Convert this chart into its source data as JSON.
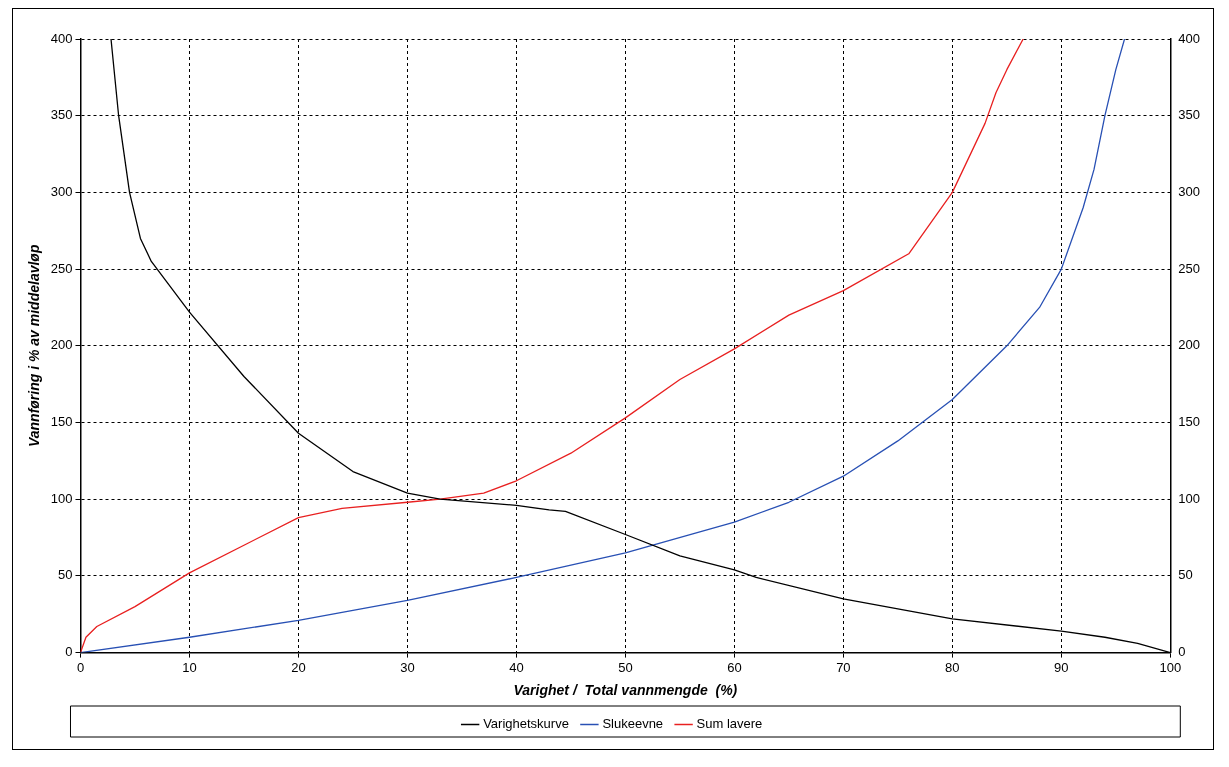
{
  "chart_data": {
    "type": "line",
    "xlabel": "Varighet /  Total vannmengde  (%)",
    "ylabel": "Vannføring i % av middelavløp",
    "xlim": [
      0,
      100
    ],
    "xticks": [
      0,
      10,
      20,
      30,
      40,
      50,
      60,
      70,
      80,
      90,
      100
    ],
    "ylim": [
      0,
      400
    ],
    "yticks": [
      0,
      50,
      100,
      150,
      200,
      250,
      300,
      350,
      400
    ],
    "y2lim": [
      0,
      400
    ],
    "y2ticks": [
      0,
      50,
      100,
      150,
      200,
      250,
      300,
      350,
      400
    ],
    "grid": true,
    "legend": "bottom",
    "marker": "none",
    "line_style": "solid",
    "series": [
      {
        "name": "Varighetskurve",
        "color": "#000000",
        "x": [
          2.8,
          3.5,
          4.5,
          5.5,
          6.5,
          10,
          15,
          20,
          25,
          30,
          33,
          40,
          43,
          44.5,
          50,
          55,
          60,
          62,
          70,
          80,
          90,
          94,
          97,
          100
        ],
        "values": [
          400,
          350,
          300,
          270,
          255,
          222,
          180,
          143,
          118,
          104,
          100,
          96,
          93,
          92,
          77,
          63,
          54,
          49,
          35,
          22,
          14,
          10,
          6,
          0
        ]
      },
      {
        "name": "Slukeevne",
        "color": "#2850b4",
        "x": [
          0,
          10,
          20,
          30,
          40,
          50,
          60,
          65,
          70,
          75,
          80,
          85,
          88,
          90,
          92,
          93,
          94,
          95,
          95.8
        ],
        "values": [
          0,
          10,
          21,
          34,
          49,
          65,
          85,
          98,
          115,
          138,
          165,
          200,
          225,
          250,
          290,
          315,
          350,
          380,
          400
        ]
      },
      {
        "name": "Sum lavere",
        "color": "#e82020",
        "x": [
          0,
          0.5,
          1.5,
          5,
          10,
          15,
          20,
          24,
          30,
          33,
          37,
          40,
          45,
          50,
          55,
          60,
          65,
          70,
          76,
          80,
          82,
          83,
          84,
          85,
          86.5
        ],
        "values": [
          0,
          10,
          17,
          30,
          52,
          70,
          88,
          94,
          98,
          100,
          104,
          112,
          130,
          153,
          178,
          198,
          220,
          236,
          260,
          300,
          330,
          345,
          365,
          380,
          400
        ]
      }
    ]
  }
}
